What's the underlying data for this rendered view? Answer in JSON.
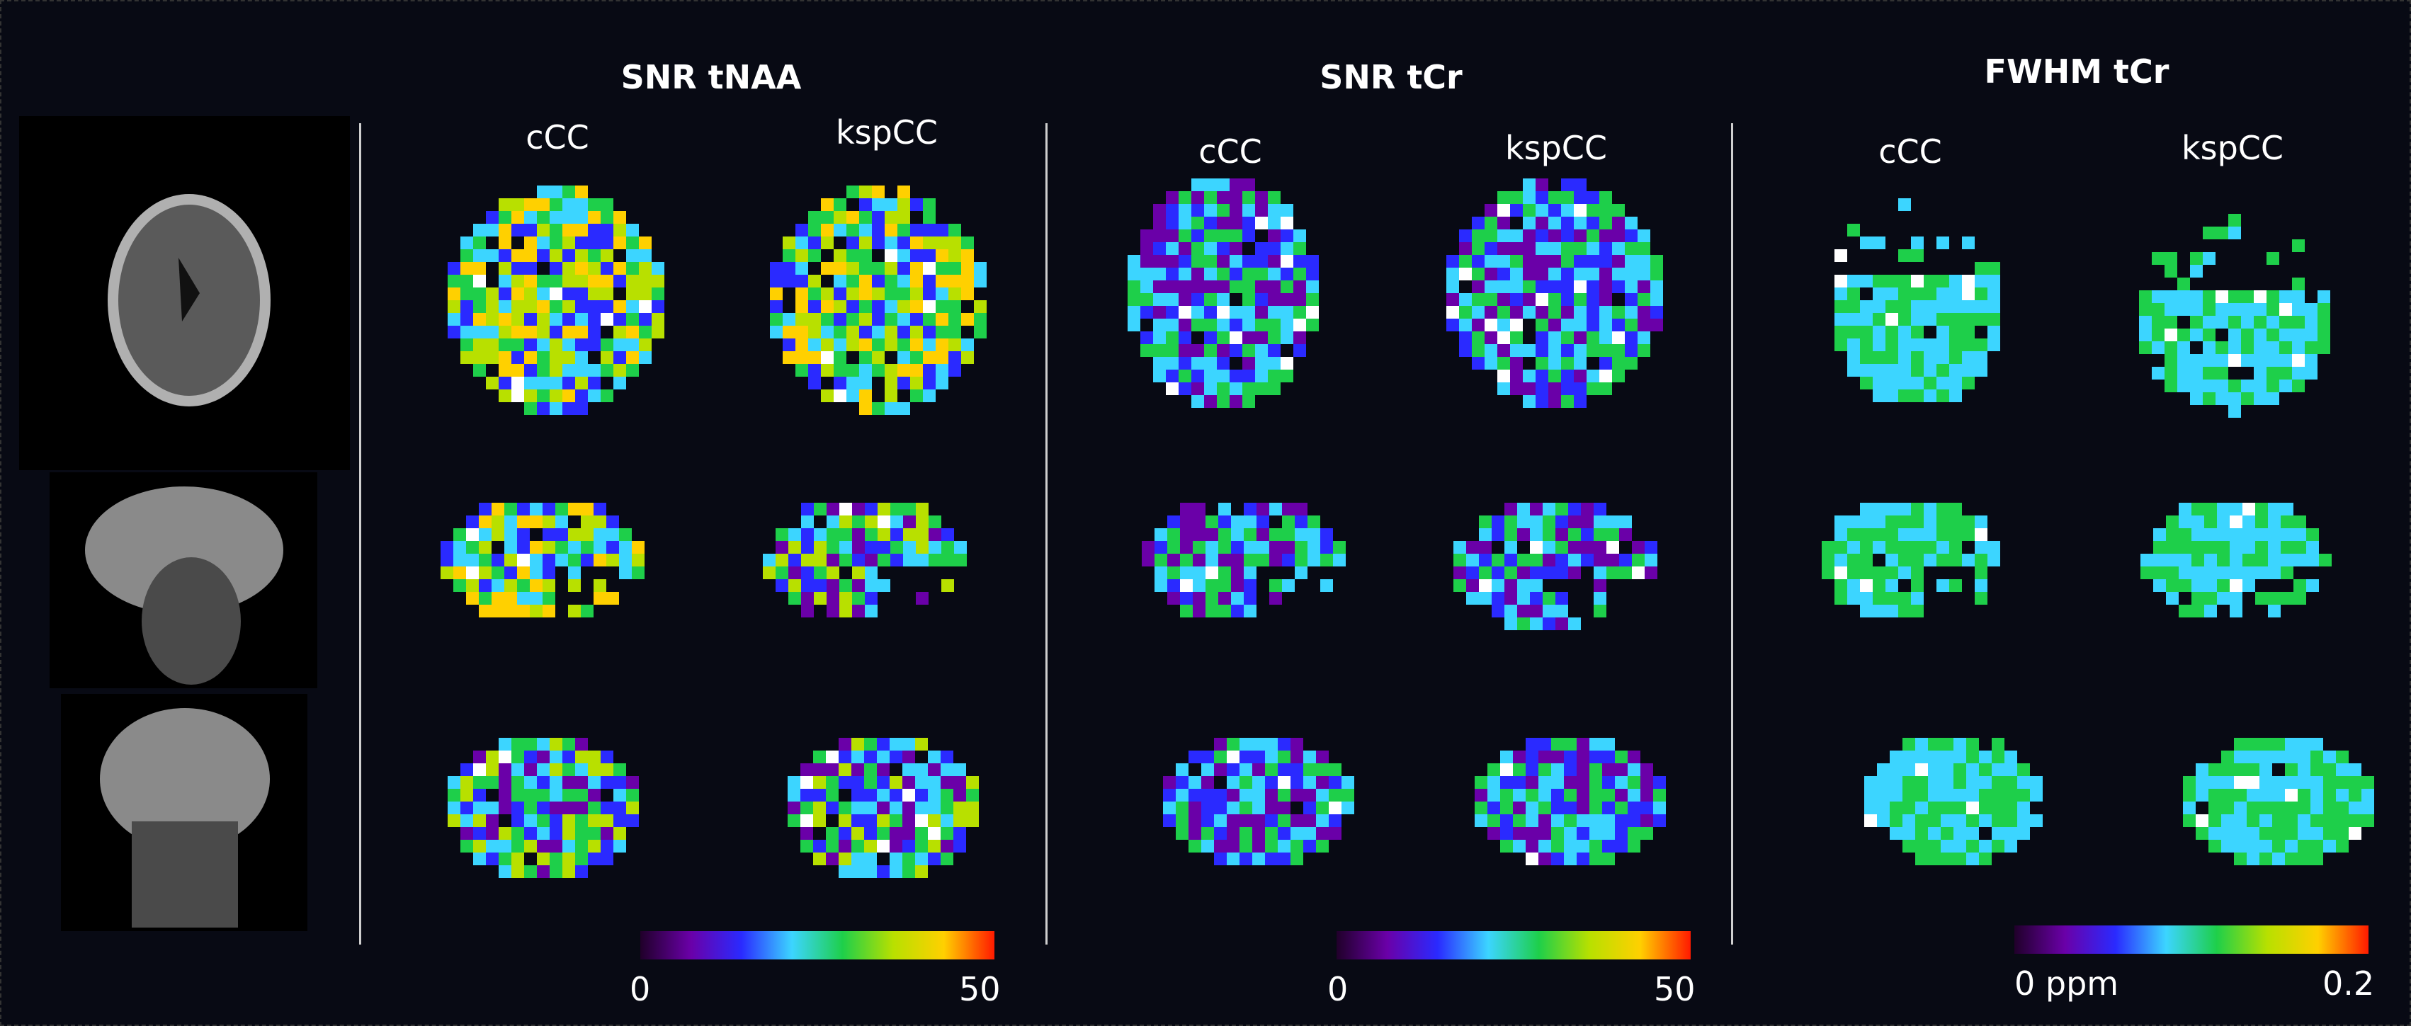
{
  "panels": [
    {
      "title": "SNR tNAA",
      "cols": [
        "cCC",
        "kspCC"
      ],
      "colorbar": {
        "min": "0",
        "max": "50"
      }
    },
    {
      "title": "SNR tCr",
      "cols": [
        "cCC",
        "kspCC"
      ],
      "colorbar": {
        "min": "0",
        "max": "50"
      }
    },
    {
      "title": "FWHM tCr",
      "cols": [
        "cCC",
        "kspCC"
      ],
      "colorbar": {
        "min": "0 ppm",
        "max": "0.2"
      }
    }
  ],
  "colors": {
    "colormap": [
      "#20002a",
      "#6a00a8",
      "#2a2aff",
      "#3cd5ff",
      "#1ecf4a",
      "#b8e000",
      "#ffd000",
      "#ff1a00"
    ],
    "background": "#080a14",
    "divider": "#cfcfcf"
  },
  "anatomical_views": [
    "axial",
    "sagittal",
    "coronal"
  ]
}
